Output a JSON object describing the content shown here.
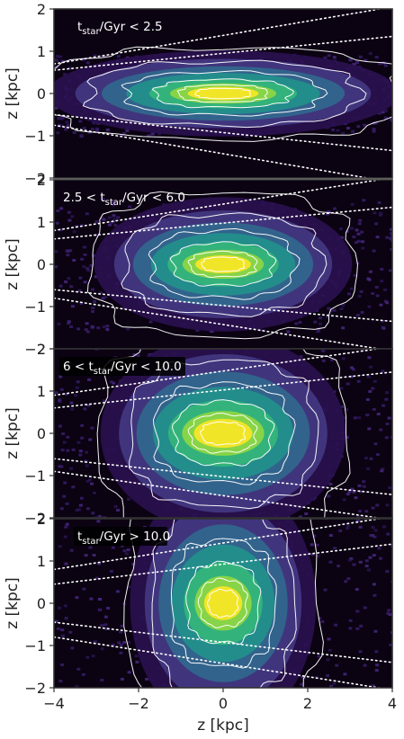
{
  "figure": {
    "xlabel": "z [kpc]",
    "colors": {
      "background": "#0b0212",
      "noise_purple": "#3b1f6e",
      "contour": "#ffffff",
      "core": "#f0e43a",
      "colormap": [
        "#0b0212",
        "#2a1150",
        "#443a83",
        "#31688e",
        "#21918c",
        "#35b779",
        "#90d743",
        "#fde725"
      ]
    }
  },
  "chart_data": [
    {
      "type": "heatmap",
      "title": "t_star/Gyr < 2.5",
      "title_parts": [
        "t",
        "star",
        "/Gyr < 2.5"
      ],
      "title_box": false,
      "xlabel": "",
      "ylabel": "z [kpc]",
      "xlim": [
        -4,
        4
      ],
      "ylim": [
        -2,
        2
      ],
      "xticks": [],
      "yticks": [
        -2,
        -1,
        0,
        1,
        2
      ],
      "grid": false,
      "distribution": {
        "x_center": 0,
        "y_center": 0,
        "scale_height_kpc": 0.28,
        "scale_length_kpc": 3.6,
        "core_halfwidth_kpc": 0.55,
        "core_halfheight_kpc": 0.12
      },
      "dotted_lines": [
        {
          "x": [
            -4,
            4
          ],
          "y": [
            0.7,
            2.05
          ]
        },
        {
          "x": [
            -4,
            4
          ],
          "y": [
            0.55,
            1.35
          ]
        },
        {
          "x": [
            -4,
            4
          ],
          "y": [
            -0.5,
            -1.35
          ]
        },
        {
          "x": [
            -4,
            4
          ],
          "y": [
            -0.75,
            -2.1
          ]
        }
      ]
    },
    {
      "type": "heatmap",
      "title": "2.5 < t_star/Gyr < 6.0",
      "title_parts": [
        "2.5 < t",
        "star",
        "/Gyr < 6.0"
      ],
      "title_box": false,
      "xlabel": "",
      "ylabel": "z [kpc]",
      "xlim": [
        -4,
        4
      ],
      "ylim": [
        -2,
        2
      ],
      "xticks": [],
      "yticks": [
        -2,
        -1,
        0,
        1,
        2
      ],
      "grid": false,
      "distribution": {
        "x_center": 0,
        "y_center": 0,
        "scale_height_kpc": 0.45,
        "scale_length_kpc": 2.6,
        "core_halfwidth_kpc": 0.45,
        "core_halfheight_kpc": 0.15
      },
      "dotted_lines": [
        {
          "x": [
            -4,
            4
          ],
          "y": [
            0.8,
            2.05
          ]
        },
        {
          "x": [
            -4,
            4
          ],
          "y": [
            0.6,
            1.35
          ]
        },
        {
          "x": [
            -4,
            4
          ],
          "y": [
            -0.6,
            -1.35
          ]
        },
        {
          "x": [
            -4,
            4
          ],
          "y": [
            -0.8,
            -2.05
          ]
        }
      ]
    },
    {
      "type": "heatmap",
      "title": "6 < t_star/Gyr < 10.0",
      "title_parts": [
        "6 < t",
        "star",
        "/Gyr < 10.0"
      ],
      "title_box": true,
      "xlabel": "",
      "ylabel": "z [kpc]",
      "xlim": [
        -4,
        4
      ],
      "ylim": [
        -2,
        2
      ],
      "xticks": [],
      "yticks": [
        -2,
        -1,
        0,
        1,
        2
      ],
      "grid": false,
      "distribution": {
        "x_center": 0,
        "y_center": 0,
        "scale_height_kpc": 0.65,
        "scale_length_kpc": 2.4,
        "core_halfwidth_kpc": 0.5,
        "core_halfheight_kpc": 0.25
      },
      "dotted_lines": [
        {
          "x": [
            -4,
            4
          ],
          "y": [
            0.9,
            2.05
          ]
        },
        {
          "x": [
            -4,
            4
          ],
          "y": [
            0.6,
            1.45
          ]
        },
        {
          "x": [
            -4,
            4
          ],
          "y": [
            -0.6,
            -1.45
          ]
        },
        {
          "x": [
            -4,
            4
          ],
          "y": [
            -0.9,
            -2.05
          ]
        }
      ]
    },
    {
      "type": "heatmap",
      "title": "t_star/Gyr > 10.0",
      "title_parts": [
        "t",
        "star",
        "/Gyr > 10.0"
      ],
      "title_box": true,
      "xlabel": "z [kpc]",
      "ylabel": "z [kpc]",
      "xlim": [
        -4,
        4
      ],
      "ylim": [
        -2,
        2
      ],
      "xticks": [
        -4,
        -2,
        0,
        2,
        4
      ],
      "yticks": [
        -2,
        -1,
        0,
        1,
        2
      ],
      "grid": false,
      "distribution": {
        "x_center": 0,
        "y_center": 0,
        "scale_height_kpc": 0.85,
        "scale_length_kpc": 1.9,
        "core_halfwidth_kpc": 0.3,
        "core_halfheight_kpc": 0.28
      },
      "dotted_lines": [
        {
          "x": [
            -4,
            4
          ],
          "y": [
            0.8,
            2.05
          ]
        },
        {
          "x": [
            -4,
            4
          ],
          "y": [
            0.45,
            1.4
          ]
        },
        {
          "x": [
            -4,
            4
          ],
          "y": [
            -0.45,
            -1.4
          ]
        },
        {
          "x": [
            -4,
            4
          ],
          "y": [
            -0.8,
            -2.05
          ]
        }
      ]
    }
  ]
}
